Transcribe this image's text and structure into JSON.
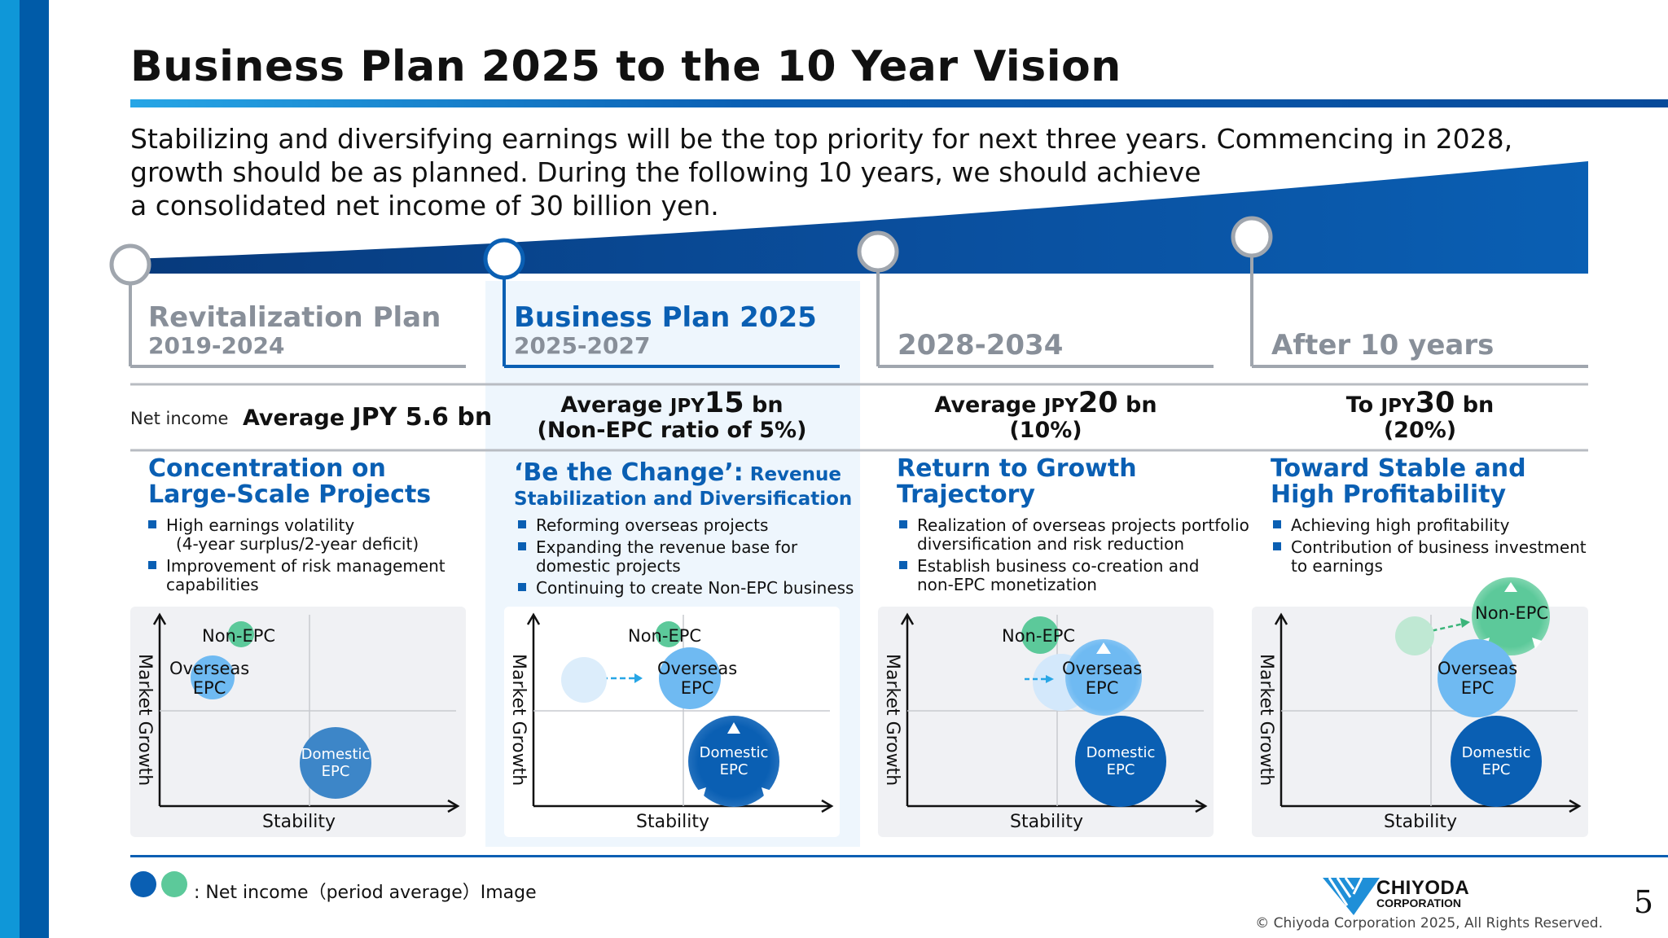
{
  "title": "Business Plan 2025 to the 10 Year Vision",
  "intro": [
    "Stabilizing and diversifying earnings will be the top priority for next three years. Commencing in 2028,",
    "growth should be as planned. During the following 10 years, we should achieve",
    "a consolidated net income of 30 billion yen."
  ],
  "net_income_label": "Net income",
  "phases": [
    {
      "name": "Revitalization Plan",
      "years": "2019-2024",
      "income": {
        "prefix": "Average ",
        "unit": "JPY ",
        "value": "5.6",
        "suffix": " bn",
        "note": ""
      },
      "heading_line1": "Concentration on",
      "heading_line2": "Large-Scale Projects",
      "bullets": [
        "High earnings volatility",
        "(4-year surplus/2-year deficit)",
        "Improvement of risk management",
        "capabilities"
      ]
    },
    {
      "name": "Business Plan 2025",
      "years": "2025-2027",
      "income": {
        "prefix": "Average ",
        "unit": "JPY",
        "value": "15",
        "suffix": " bn",
        "note": "(Non-EPC ratio of 5%)"
      },
      "heading_line1": "‘Be the Change’:",
      "heading_line1b": " Revenue",
      "heading_line2": "Stabilization and Diversification",
      "bullets": [
        "Reforming overseas projects",
        "Expanding the revenue base for",
        "domestic projects",
        "Continuing to create Non-EPC business"
      ]
    },
    {
      "name": "",
      "years": "2028-2034",
      "income": {
        "prefix": "Average ",
        "unit": "JPY",
        "value": "20",
        "suffix": " bn",
        "note": "(10%)"
      },
      "heading_line1": "Return to Growth",
      "heading_line2": "Trajectory",
      "bullets": [
        "Realization of overseas projects portfolio",
        "diversification and risk reduction",
        "Establish business co-creation and",
        "non-EPC monetization"
      ]
    },
    {
      "name": "",
      "years": "After 10 years",
      "income": {
        "prefix": "To ",
        "unit": "JPY",
        "value": "30",
        "suffix": " bn",
        "note": "(20%)"
      },
      "heading_line1": "Toward Stable and",
      "heading_line2": "High Profitability",
      "bullets": [
        "Achieving high profitability",
        "Contribution of business investment",
        "to earnings"
      ]
    }
  ],
  "chart_labels": {
    "x_axis": "Stability",
    "y_axis": "Market Growth",
    "non_epc": "Non-EPC",
    "overseas_line1": "Overseas",
    "overseas_line2": "EPC",
    "domestic_line1": "Domestic",
    "domestic_line2": "EPC"
  },
  "legend": ": Net income（period average）Image",
  "logo_text_line1": "CHIYODA",
  "logo_text_line2": "CORPORATION",
  "copyright": "© Chiyoda Corporation 2025, All Rights Reserved.",
  "page_number": "5",
  "colors": {
    "brand_blue": "#0a5fb3",
    "light_blue": "#27a6e6",
    "non_epc_green": "#5cc99a",
    "overseas_blue": "#6fbaf2",
    "domestic_blue": "#0a5fb3",
    "highlight_bg": "#eef6fd"
  }
}
